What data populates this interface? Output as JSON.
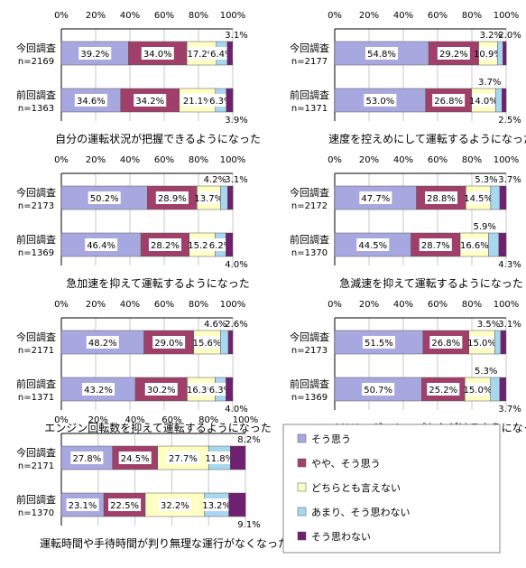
{
  "axis_ticks": [
    "0%",
    "20%",
    "40%",
    "60%",
    "80%",
    "100%"
  ],
  "row_labels": {
    "current": {
      "title": "今回調査"
    },
    "previous": {
      "title": "前回調査"
    }
  },
  "legend": [
    {
      "name": "そう思う",
      "color": "#a8a8e0"
    },
    {
      "name": "やや、そう思う",
      "color": "#a0406a"
    },
    {
      "name": "どちらとも言えない",
      "color": "#ffffc4"
    },
    {
      "name": "あまり、そう思わない",
      "color": "#a8d8f0"
    },
    {
      "name": "そう思わない",
      "color": "#702070"
    }
  ],
  "chart_data": [
    {
      "type": "bar",
      "orientation": "horizontal",
      "stacked": true,
      "xlim": [
        0,
        100
      ],
      "grid": true,
      "title": "自分の運転状況が把握できるようになった",
      "rows": [
        {
          "survey": "今回調査",
          "n": "n=2169",
          "values": [
            39.2,
            34.0,
            17.2,
            6.4,
            3.1
          ],
          "labels": [
            "39.2%",
            "34.0%",
            "17.2%",
            "6.4%",
            "3.1%"
          ]
        },
        {
          "survey": "前回調査",
          "n": "n=1363",
          "values": [
            34.6,
            34.2,
            21.1,
            6.3,
            3.9
          ],
          "labels": [
            "34.6%",
            "34.2%",
            "21.1%",
            "6.3%",
            "3.9%"
          ]
        }
      ]
    },
    {
      "type": "bar",
      "orientation": "horizontal",
      "stacked": true,
      "xlim": [
        0,
        100
      ],
      "grid": true,
      "title": "速度を控えめにして運転するようになった",
      "rows": [
        {
          "survey": "今回調査",
          "n": "n=2177",
          "values": [
            54.8,
            29.2,
            10.9,
            3.2,
            2.0
          ],
          "labels": [
            "54.8%",
            "29.2%",
            "10.9%",
            "3.2%",
            "2.0%"
          ]
        },
        {
          "survey": "前回調査",
          "n": "n=1371",
          "values": [
            53.0,
            26.8,
            14.0,
            3.7,
            2.5
          ],
          "labels": [
            "53.0%",
            "26.8%",
            "14.0%",
            "3.7%",
            "2.5%"
          ]
        }
      ]
    },
    {
      "type": "bar",
      "orientation": "horizontal",
      "stacked": true,
      "xlim": [
        0,
        100
      ],
      "grid": true,
      "title": "急加速を抑えて運転するようになった",
      "rows": [
        {
          "survey": "今回調査",
          "n": "n=2173",
          "values": [
            50.2,
            28.9,
            13.7,
            4.2,
            3.1
          ],
          "labels": [
            "50.2%",
            "28.9%",
            "13.7%",
            "4.2%",
            "3.1%"
          ]
        },
        {
          "survey": "前回調査",
          "n": "n=1369",
          "values": [
            46.4,
            28.2,
            15.2,
            6.2,
            4.0
          ],
          "labels": [
            "46.4%",
            "28.2%",
            "15.2%",
            "6.2%",
            "4.0%"
          ]
        }
      ]
    },
    {
      "type": "bar",
      "orientation": "horizontal",
      "stacked": true,
      "xlim": [
        0,
        100
      ],
      "grid": true,
      "title": "急減速を抑えて運転するようになった",
      "rows": [
        {
          "survey": "今回調査",
          "n": "n=2172",
          "values": [
            47.7,
            28.8,
            14.5,
            5.3,
            3.7
          ],
          "labels": [
            "47.7%",
            "28.8%",
            "14.5%",
            "5.3%",
            "3.7%"
          ]
        },
        {
          "survey": "前回調査",
          "n": "n=1370",
          "values": [
            44.5,
            28.7,
            16.6,
            5.9,
            4.3
          ],
          "labels": [
            "44.5%",
            "28.7%",
            "16.6%",
            "5.9%",
            "4.3%"
          ]
        }
      ]
    },
    {
      "type": "bar",
      "orientation": "horizontal",
      "stacked": true,
      "xlim": [
        0,
        100
      ],
      "grid": true,
      "title": "エンジン回転数を抑えて運転するようになった",
      "rows": [
        {
          "survey": "今回調査",
          "n": "n=2171",
          "values": [
            48.2,
            29.0,
            15.6,
            4.6,
            2.6
          ],
          "labels": [
            "48.2%",
            "29.0%",
            "15.6%",
            "4.6%",
            "2.6%"
          ]
        },
        {
          "survey": "前回調査",
          "n": "n=1371",
          "values": [
            43.2,
            30.2,
            16.3,
            6.3,
            4.0
          ],
          "labels": [
            "43.2%",
            "30.2%",
            "16.3%",
            "6.3%",
            "4.0%"
          ]
        }
      ]
    },
    {
      "type": "bar",
      "orientation": "horizontal",
      "stacked": true,
      "xlim": [
        0,
        100
      ],
      "grid": true,
      "title": "アイドリングストップを心がけるようになった",
      "rows": [
        {
          "survey": "今回調査",
          "n": "n=2173",
          "values": [
            51.5,
            26.8,
            15.0,
            3.5,
            3.1
          ],
          "labels": [
            "51.5%",
            "26.8%",
            "15.0%",
            "3.5%",
            "3.1%"
          ]
        },
        {
          "survey": "前回調査",
          "n": "n=1369",
          "values": [
            50.7,
            25.2,
            15.0,
            5.3,
            3.7
          ],
          "labels": [
            "50.7%",
            "25.2%",
            "15.0%",
            "5.3%",
            "3.7%"
          ]
        }
      ]
    },
    {
      "type": "bar",
      "orientation": "horizontal",
      "stacked": true,
      "xlim": [
        0,
        100
      ],
      "grid": true,
      "title": "運転時間や手待時間が判り無理な運行がなくなった",
      "rows": [
        {
          "survey": "今回調査",
          "n": "n=2171",
          "values": [
            27.8,
            24.5,
            27.7,
            11.8,
            8.2
          ],
          "labels": [
            "27.8%",
            "24.5%",
            "27.7%",
            "11.8%",
            "8.2%"
          ]
        },
        {
          "survey": "前回調査",
          "n": "n=1370",
          "values": [
            23.1,
            22.5,
            32.2,
            13.2,
            9.1
          ],
          "labels": [
            "23.1%",
            "22.5%",
            "32.2%",
            "13.2%",
            "9.1%"
          ]
        }
      ]
    }
  ]
}
